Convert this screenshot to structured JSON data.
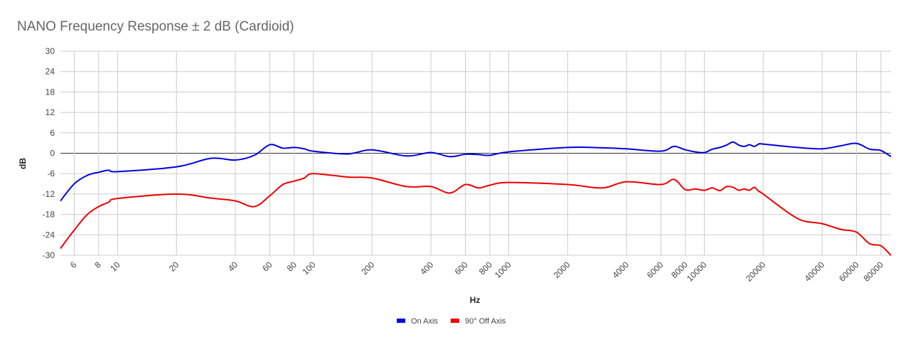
{
  "chart_data": {
    "type": "line",
    "title": "NANO Frequency Response  ± 2 dB (Cardioid)",
    "x_label": "Hz",
    "y_label": "dB",
    "log_x": true,
    "grid": true,
    "legend": "bottom",
    "x": [
      5.1,
      6,
      7,
      8,
      9,
      10,
      20,
      30,
      40,
      50,
      60,
      70,
      80,
      90,
      100,
      150,
      200,
      300,
      400,
      500,
      600,
      700,
      800,
      1000,
      2000,
      3000,
      4000,
      6000,
      7000,
      8000,
      9000,
      10000,
      11000,
      12000,
      13000,
      14000,
      15000,
      16000,
      17000,
      18000,
      19000,
      20000,
      30000,
      40000,
      50000,
      60000,
      70000,
      80000,
      90000
    ],
    "series": [
      {
        "name": "On Axis",
        "color": "#0000dd",
        "values": [
          -14,
          -9,
          -6.5,
          -5.6,
          -5,
          -5.4,
          -4,
          -1.5,
          -2,
          -0.6,
          2.5,
          1.5,
          1.7,
          1.3,
          0.6,
          -0.2,
          1,
          -0.8,
          0.2,
          -1,
          -0.3,
          -0.4,
          -0.6,
          0.4,
          1.7,
          1.6,
          1.3,
          0.6,
          2,
          1,
          0.4,
          0.2,
          1.2,
          1.7,
          2.4,
          3.3,
          2.4,
          2,
          2.5,
          2,
          2.7,
          2.7,
          1.7,
          1.3,
          2.2,
          2.9,
          1.2,
          0.8,
          -1
        ]
      },
      {
        "name": "90° Off Axis",
        "color": "#ee0000",
        "values": [
          -28,
          -22.6,
          -18,
          -15.7,
          -14.4,
          -13.3,
          -12,
          -13.2,
          -14,
          -15.7,
          -12.5,
          -9.2,
          -8.2,
          -7.3,
          -6,
          -7,
          -7.3,
          -9.8,
          -9.8,
          -11.7,
          -9.2,
          -10.2,
          -9.4,
          -8.6,
          -9.2,
          -10.2,
          -8.4,
          -9.2,
          -7.7,
          -10.7,
          -10.5,
          -10.9,
          -10.2,
          -11,
          -9.8,
          -10,
          -10.9,
          -10.5,
          -10.9,
          -10,
          -11.2,
          -12,
          -19.2,
          -20.7,
          -22.4,
          -23.2,
          -26.6,
          -27.2,
          -30
        ]
      }
    ],
    "xlim": [
      5.1,
      90000
    ],
    "xticks": [
      6,
      8,
      10,
      20,
      40,
      60,
      80,
      100,
      200,
      400,
      600,
      800,
      1000,
      2000,
      4000,
      6000,
      8000,
      10000,
      20000,
      40000,
      60000,
      80000
    ],
    "ylim": [
      -30,
      30
    ],
    "yticks": [
      -30,
      -24,
      -18,
      -12,
      -6,
      0,
      6,
      12,
      18,
      24,
      30
    ]
  }
}
